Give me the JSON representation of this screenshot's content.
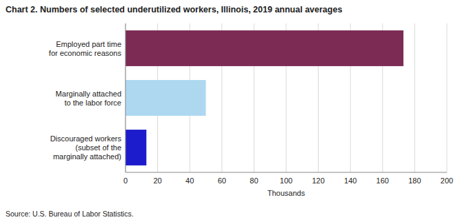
{
  "chart_data": {
    "type": "bar",
    "orientation": "horizontal",
    "title": "Chart 2. Numbers of selected underutilized workers, Illinois, 2019 annual averages",
    "categories": [
      "Discouraged workers\n(subset of the\nmarginally attached)",
      "Marginally attached\nto the labor force",
      "Employed part time\nfor economic reasons"
    ],
    "values": [
      13,
      50,
      173
    ],
    "colors": [
      "#1c1ccc",
      "#add8f0",
      "#7b2b54"
    ],
    "xlabel": "Thousands",
    "xlim": [
      0,
      200
    ],
    "xticks": [
      0,
      20,
      40,
      60,
      80,
      100,
      120,
      140,
      160,
      180,
      200
    ],
    "grid": true,
    "source": "Source: U.S. Bureau of Labor Statistics."
  }
}
